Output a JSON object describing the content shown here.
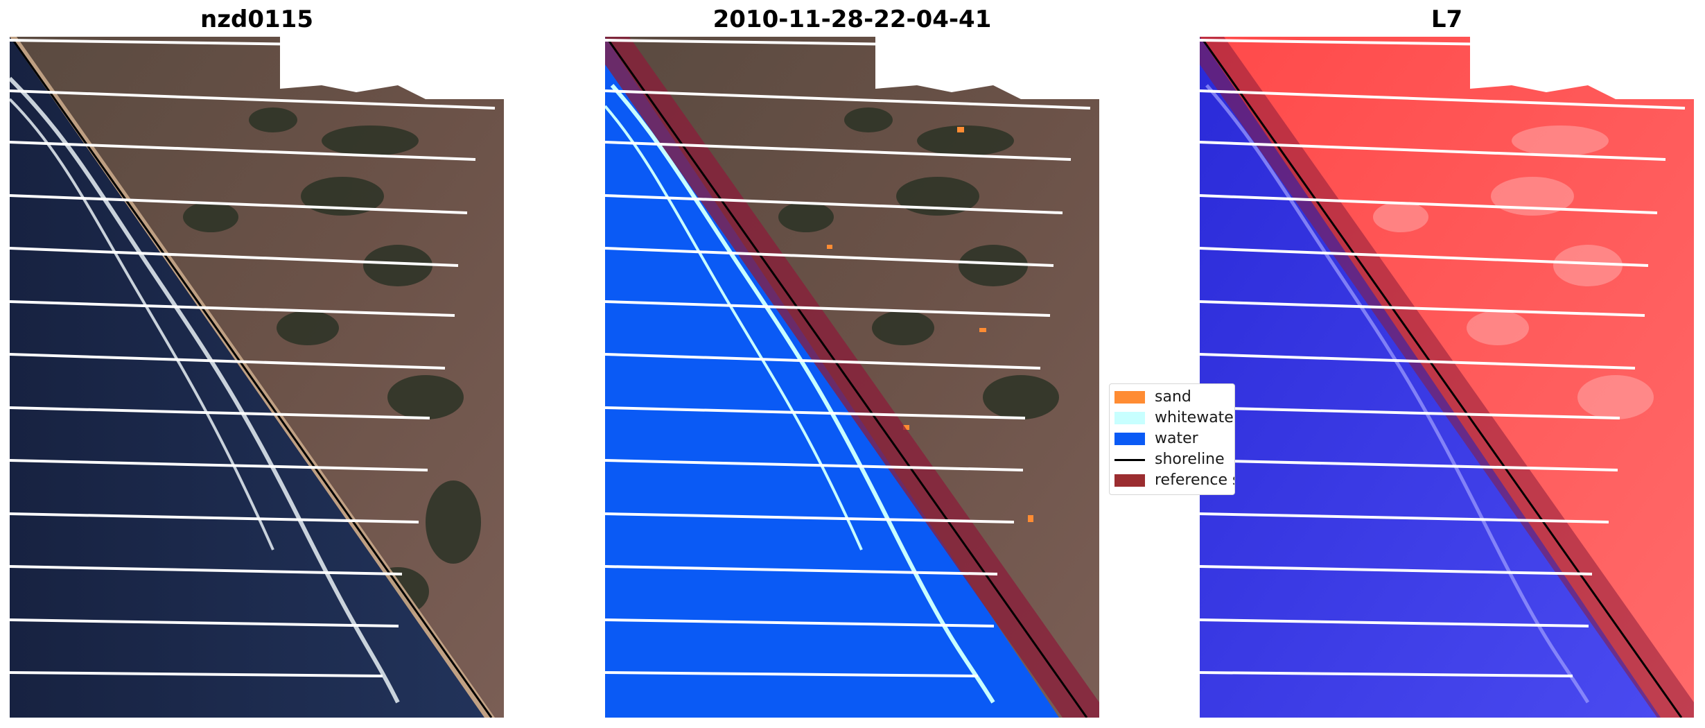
{
  "panels": [
    {
      "title": "nzd0115"
    },
    {
      "title": "2010-11-28-22-04-41"
    },
    {
      "title": "L7"
    }
  ],
  "legend": {
    "items": [
      {
        "label": "sand",
        "color": "#ff8c33",
        "kind": "patch"
      },
      {
        "label": "whitewater",
        "color": "#c8ffff",
        "kind": "patch"
      },
      {
        "label": "water",
        "color": "#0a5af5",
        "kind": "patch"
      },
      {
        "label": "shoreline",
        "color": "#000000",
        "kind": "line"
      },
      {
        "label": "reference shoreline buffer",
        "color": "#9b2d30",
        "kind": "patch"
      }
    ]
  },
  "colors": {
    "land": "#4a4038",
    "sea": "#1a2545",
    "cloud_gap": "#ffffff",
    "stripe_gap": "#ffffff",
    "water_class": "#0a5af5",
    "buffer": "#8b1c3a",
    "index_land": "#ff5555",
    "index_water": "#3535e0"
  }
}
